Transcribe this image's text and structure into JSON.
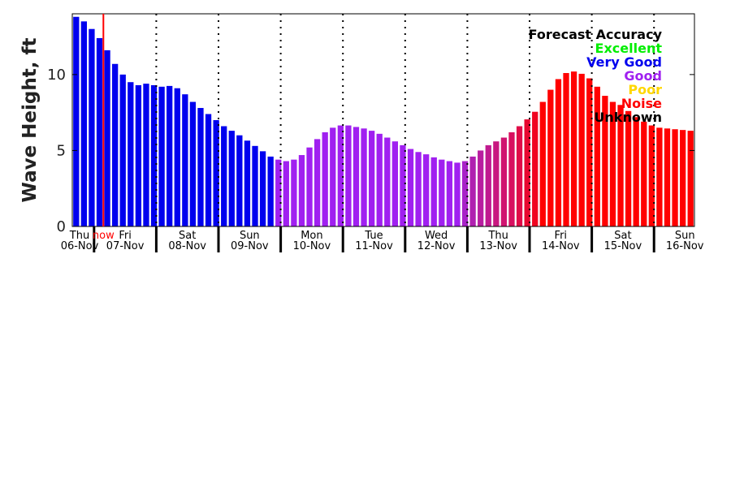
{
  "chart_data": {
    "type": "bar",
    "ylabel": "Wave Height, ft",
    "ylim": [
      0,
      14
    ],
    "yticks": [
      0,
      5,
      10
    ],
    "grid": "dotted vertical lines at day boundaries",
    "now_label": "now",
    "now_bar_index": 3.5,
    "day_labels": [
      {
        "day": "Thu",
        "date": "06-Nov"
      },
      {
        "day": "Fri",
        "date": "07-Nov"
      },
      {
        "day": "Sat",
        "date": "08-Nov"
      },
      {
        "day": "Sun",
        "date": "09-Nov"
      },
      {
        "day": "Mon",
        "date": "10-Nov"
      },
      {
        "day": "Tue",
        "date": "11-Nov"
      },
      {
        "day": "Wed",
        "date": "12-Nov"
      },
      {
        "day": "Thu",
        "date": "13-Nov"
      },
      {
        "day": "Fri",
        "date": "14-Nov"
      },
      {
        "day": "Sat",
        "date": "15-Nov"
      },
      {
        "day": "Sun",
        "date": "16-Nov"
      }
    ],
    "legend": {
      "title": "Forecast Accuracy",
      "placement": "top-right",
      "entries": [
        {
          "label": "Excellent",
          "color": "#00ee00"
        },
        {
          "label": "Very Good",
          "color": "#0000ee"
        },
        {
          "label": "Good",
          "color": "#a020f0"
        },
        {
          "label": "Poor",
          "color": "#ffd700"
        },
        {
          "label": "Noise",
          "color": "#ff0000"
        },
        {
          "label": "Unknown",
          "color": "#000000"
        }
      ]
    },
    "values": [
      13.8,
      13.5,
      13.0,
      12.4,
      11.6,
      10.7,
      10.0,
      9.5,
      9.3,
      9.4,
      9.3,
      9.2,
      9.25,
      9.1,
      8.7,
      8.2,
      7.8,
      7.4,
      7.0,
      6.6,
      6.3,
      6.0,
      5.65,
      5.3,
      4.95,
      4.6,
      4.4,
      4.3,
      4.4,
      4.7,
      5.2,
      5.75,
      6.2,
      6.5,
      6.65,
      6.65,
      6.55,
      6.45,
      6.3,
      6.1,
      5.85,
      5.6,
      5.35,
      5.1,
      4.9,
      4.75,
      4.55,
      4.4,
      4.3,
      4.2,
      4.3,
      4.6,
      5.0,
      5.35,
      5.6,
      5.85,
      6.2,
      6.6,
      7.05,
      7.55,
      8.2,
      9.0,
      9.7,
      10.1,
      10.2,
      10.05,
      9.75,
      9.2,
      8.6,
      8.2,
      8.0,
      7.6,
      7.2,
      6.9,
      6.65,
      6.5,
      6.45,
      6.4,
      6.35,
      6.3
    ],
    "colors": [
      "#0000ee",
      "#0000ee",
      "#0000ee",
      "#0000ee",
      "#0000ee",
      "#0000ee",
      "#0000ee",
      "#0000ee",
      "#0000ee",
      "#0000ee",
      "#0000ee",
      "#0000ee",
      "#0000ee",
      "#0000ee",
      "#0000ee",
      "#0000ee",
      "#0000ee",
      "#0000ee",
      "#0000ee",
      "#0000ee",
      "#0000ee",
      "#0000ee",
      "#0000ee",
      "#0000ee",
      "#0000ee",
      "#0000ee",
      "#a020f0",
      "#a020f0",
      "#a020f0",
      "#a020f0",
      "#a020f0",
      "#a020f0",
      "#a020f0",
      "#a020f0",
      "#a020f0",
      "#a020f0",
      "#a020f0",
      "#a020f0",
      "#a020f0",
      "#a020f0",
      "#a020f0",
      "#a020f0",
      "#a020f0",
      "#a020f0",
      "#a020f0",
      "#a020f0",
      "#a020f0",
      "#a020f0",
      "#a020f0",
      "#a020f0",
      "#a822c8",
      "#b020b0",
      "#b81ea0",
      "#c01a90",
      "#c81880",
      "#d01470",
      "#d81060",
      "#e00c48",
      "#e80830",
      "#f00420",
      "#ff0000",
      "#ff0000",
      "#ff0000",
      "#ff0000",
      "#ff0000",
      "#ff0000",
      "#ff0000",
      "#ff0000",
      "#ff0000",
      "#ff0000",
      "#ff0000",
      "#ff0000",
      "#ff0000",
      "#ff0000",
      "#ff0000",
      "#ff0000",
      "#ff0000",
      "#ff0000",
      "#ff0000",
      "#ff0000"
    ]
  }
}
